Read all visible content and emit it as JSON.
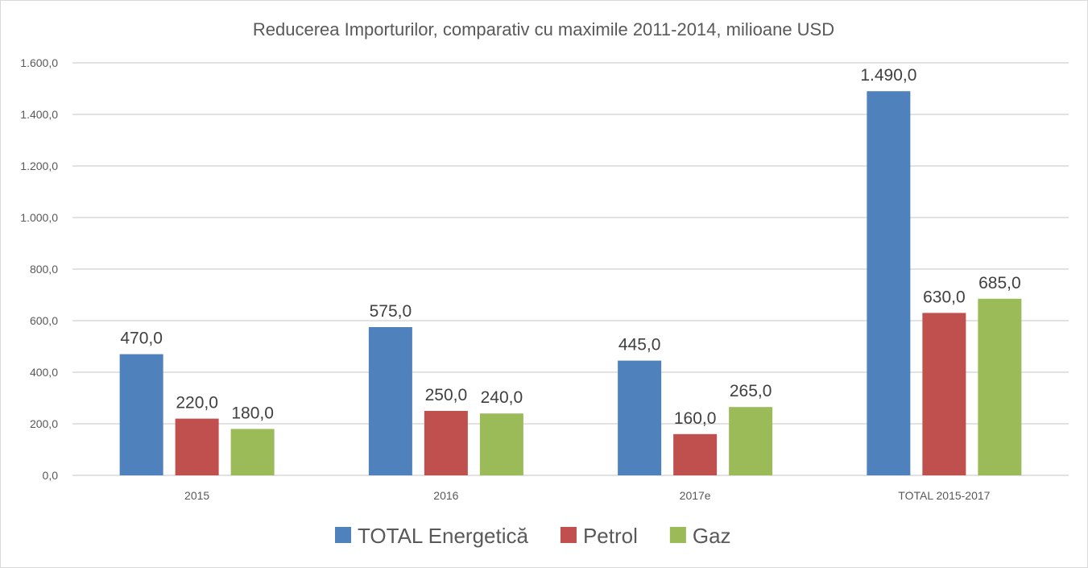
{
  "chart_data": {
    "type": "bar",
    "title": "Reducerea Importurilor, comparativ cu maximile 2011-2014, milioane USD",
    "xlabel": "",
    "ylabel": "",
    "categories": [
      "2015",
      "2016",
      "2017e",
      "TOTAL 2015-2017"
    ],
    "series": [
      {
        "name": "TOTAL Energetică",
        "color": "#4F81BD",
        "values": [
          470.0,
          575.0,
          445.0,
          1490.0
        ],
        "labels": [
          "470,0",
          "575,0",
          "445,0",
          "1.490,0"
        ]
      },
      {
        "name": "Petrol",
        "color": "#C0504D",
        "values": [
          220.0,
          250.0,
          160.0,
          630.0
        ],
        "labels": [
          "220,0",
          "250,0",
          "160,0",
          "630,0"
        ]
      },
      {
        "name": "Gaz",
        "color": "#9BBB59",
        "values": [
          180.0,
          240.0,
          265.0,
          685.0
        ],
        "labels": [
          "180,0",
          "240,0",
          "265,0",
          "685,0"
        ]
      }
    ],
    "ylim": [
      0,
      1600
    ],
    "yticks": [
      0,
      200,
      400,
      600,
      800,
      1000,
      1200,
      1400,
      1600
    ],
    "ytick_labels": [
      "0,0",
      "200,0",
      "400,0",
      "600,0",
      "800,0",
      "1.000,0",
      "1.200,0",
      "1.400,0",
      "1.600,0"
    ],
    "grid": true,
    "legend_position": "bottom"
  }
}
